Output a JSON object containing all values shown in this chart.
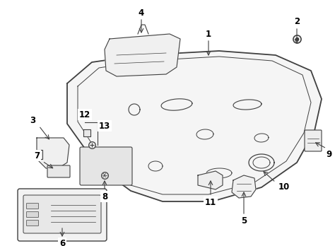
{
  "bg_color": "#ffffff",
  "line_color": "#404040",
  "label_color": "#000000",
  "fig_width": 4.74,
  "fig_height": 3.48,
  "dpi": 100
}
